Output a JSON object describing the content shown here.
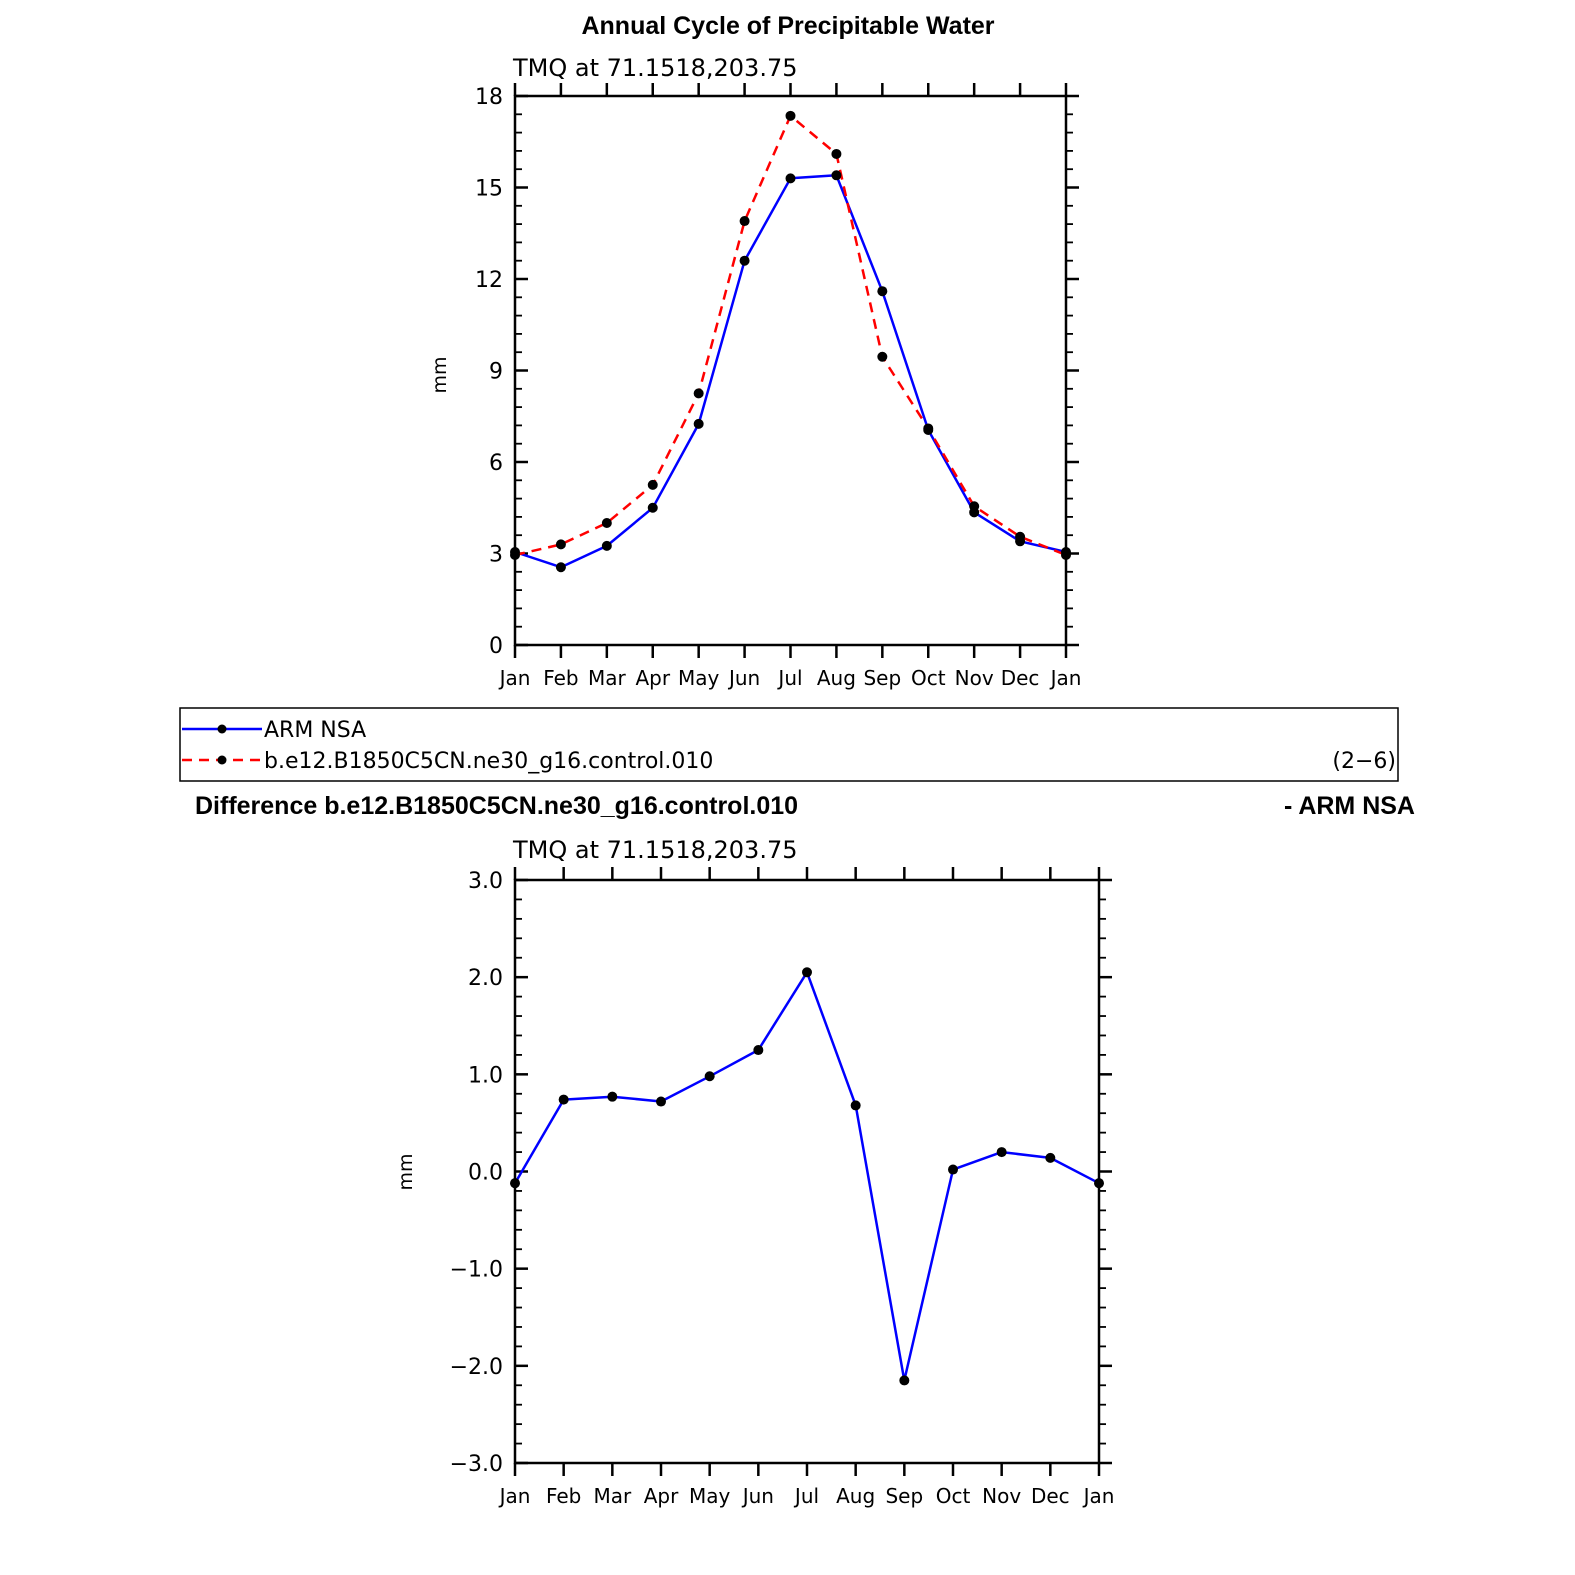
{
  "chart_data": [
    {
      "type": "line",
      "title": "Annual Cycle of Precipitable Water",
      "subtitle": "TMQ  at  71.1518,203.75",
      "ylabel": "mm",
      "ylim": [
        0,
        18
      ],
      "yticks": [
        "0",
        "3",
        "6",
        "9",
        "12",
        "15",
        "18"
      ],
      "categories": [
        "Jan",
        "Feb",
        "Mar",
        "Apr",
        "May",
        "Jun",
        "Jul",
        "Aug",
        "Sep",
        "Oct",
        "Nov",
        "Dec",
        "Jan"
      ],
      "series": [
        {
          "name": "ARM  NSA",
          "color": "#0000ff",
          "dash": "solid",
          "values": [
            3.05,
            2.55,
            3.25,
            4.5,
            7.25,
            12.6,
            15.3,
            15.4,
            11.6,
            7.05,
            4.35,
            3.4,
            3.05
          ]
        },
        {
          "name": "b.e12.B1850C5CN.ne30_g16.control.010",
          "color": "#ff0000",
          "dash": "dashed",
          "values": [
            2.95,
            3.3,
            4.0,
            5.25,
            8.25,
            13.9,
            17.35,
            16.1,
            9.45,
            7.1,
            4.55,
            3.55,
            2.95
          ]
        }
      ],
      "legend_position": "below plot",
      "panel_label": "(2−6)"
    },
    {
      "type": "line",
      "title_left": "Difference b.e12.B1850C5CN.ne30_g16.control.010",
      "title_right": "- ARM NSA",
      "subtitle": "TMQ  at  71.1518,203.75",
      "ylabel": "mm",
      "ylim": [
        -3.0,
        3.0
      ],
      "yticks": [
        "−3.0",
        "−2.0",
        "−1.0",
        "0.0",
        "1.0",
        "2.0",
        "3.0"
      ],
      "categories": [
        "Jan",
        "Feb",
        "Mar",
        "Apr",
        "May",
        "Jun",
        "Jul",
        "Aug",
        "Sep",
        "Oct",
        "Nov",
        "Dec",
        "Jan"
      ],
      "series": [
        {
          "color": "#0000ff",
          "dash": "solid",
          "values": [
            -0.12,
            0.74,
            0.77,
            0.72,
            0.98,
            1.25,
            2.05,
            0.68,
            -2.15,
            0.02,
            0.2,
            0.14,
            -0.12
          ]
        }
      ]
    }
  ]
}
